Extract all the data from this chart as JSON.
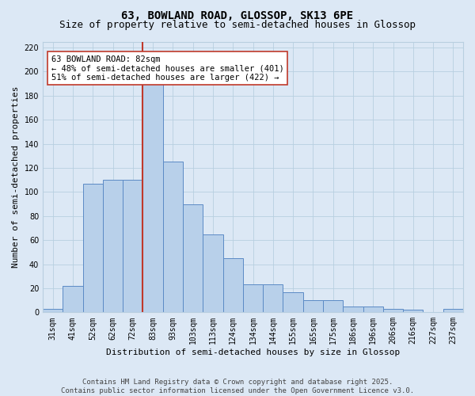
{
  "title_line1": "63, BOWLAND ROAD, GLOSSOP, SK13 6PE",
  "title_line2": "Size of property relative to semi-detached houses in Glossop",
  "xlabel": "Distribution of semi-detached houses by size in Glossop",
  "ylabel": "Number of semi-detached properties",
  "categories": [
    "31sqm",
    "41sqm",
    "52sqm",
    "62sqm",
    "72sqm",
    "83sqm",
    "93sqm",
    "103sqm",
    "113sqm",
    "124sqm",
    "134sqm",
    "144sqm",
    "155sqm",
    "165sqm",
    "175sqm",
    "186sqm",
    "196sqm",
    "206sqm",
    "216sqm",
    "227sqm",
    "237sqm"
  ],
  "values": [
    3,
    22,
    107,
    110,
    110,
    200,
    125,
    90,
    65,
    45,
    23,
    23,
    17,
    10,
    10,
    5,
    5,
    3,
    2,
    0,
    3
  ],
  "bar_color": "#b8d0ea",
  "bar_edge_color": "#5b8ac5",
  "vline_color": "#c0392b",
  "annotation_text": "63 BOWLAND ROAD: 82sqm\n← 48% of semi-detached houses are smaller (401)\n51% of semi-detached houses are larger (422) →",
  "annotation_box_color": "#ffffff",
  "annotation_box_edge": "#c0392b",
  "ylim": [
    0,
    225
  ],
  "yticks": [
    0,
    20,
    40,
    60,
    80,
    100,
    120,
    140,
    160,
    180,
    200,
    220
  ],
  "background_color": "#dce8f5",
  "grid_color": "#b8cfe0",
  "footer_text": "Contains HM Land Registry data © Crown copyright and database right 2025.\nContains public sector information licensed under the Open Government Licence v3.0.",
  "title_fontsize": 10,
  "subtitle_fontsize": 9,
  "axis_label_fontsize": 8,
  "tick_fontsize": 7,
  "annotation_fontsize": 7.5,
  "footer_fontsize": 6.5
}
